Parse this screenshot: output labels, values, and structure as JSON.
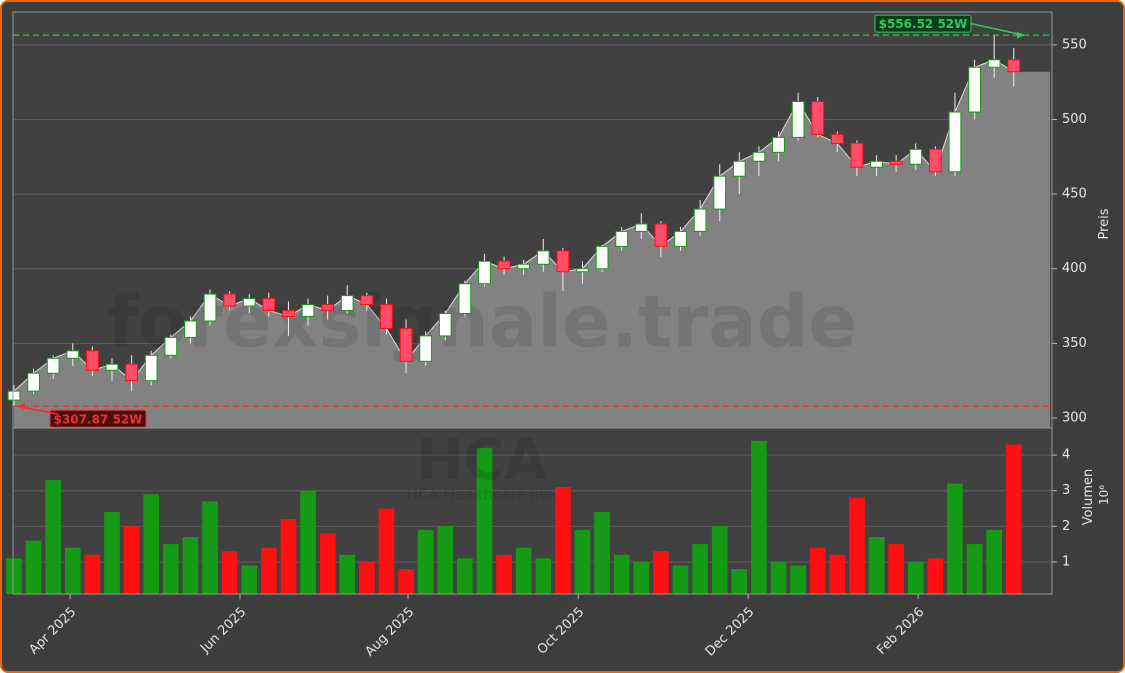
{
  "chart_data": {
    "type": "candlestick",
    "watermark": "forexsignale.trade",
    "ticker": "HCA",
    "company": "HCA Healthcare Inc.",
    "categories": [
      null,
      null,
      null,
      null,
      null,
      null,
      null,
      null,
      null,
      null,
      null,
      null,
      null,
      null,
      null,
      null,
      null,
      null,
      null,
      null,
      null,
      null,
      null,
      null,
      null,
      null,
      null,
      null,
      null,
      null,
      null,
      null,
      null,
      null,
      null,
      null,
      null,
      null,
      null,
      null,
      null,
      null,
      null,
      null,
      null,
      null,
      null,
      null,
      null,
      null,
      null,
      null
    ],
    "open": [
      312,
      318,
      330,
      340,
      345,
      332,
      336,
      325,
      342,
      354,
      365,
      383,
      375,
      380,
      372,
      368,
      376,
      372,
      382,
      376,
      360,
      338,
      355,
      370,
      390,
      405,
      400,
      403,
      412,
      398,
      400,
      415,
      425,
      430,
      415,
      425,
      440,
      462,
      472,
      478,
      488,
      512,
      490,
      484,
      468,
      472,
      470,
      480,
      465,
      505,
      535,
      540
    ],
    "high": [
      322,
      333,
      342,
      350,
      348,
      340,
      342,
      345,
      356,
      368,
      386,
      385,
      383,
      384,
      378,
      380,
      382,
      389,
      384,
      380,
      366,
      358,
      372,
      392,
      410,
      408,
      406,
      420,
      414,
      405,
      416,
      428,
      437,
      432,
      428,
      446,
      470,
      478,
      482,
      492,
      518,
      515,
      492,
      486,
      476,
      476,
      484,
      482,
      518,
      540,
      556.52,
      548
    ],
    "low": [
      307.87,
      316,
      326,
      335,
      328,
      325,
      318,
      322,
      340,
      350,
      362,
      372,
      370,
      368,
      355,
      362,
      366,
      370,
      372,
      356,
      330,
      335,
      352,
      368,
      388,
      396,
      396,
      398,
      385,
      390,
      398,
      412,
      420,
      408,
      412,
      422,
      432,
      450,
      462,
      472,
      486,
      488,
      478,
      462,
      462,
      465,
      466,
      462,
      462,
      500,
      528,
      522
    ],
    "close": [
      318,
      330,
      340,
      345,
      332,
      336,
      325,
      342,
      354,
      365,
      383,
      375,
      380,
      372,
      368,
      376,
      372,
      382,
      376,
      360,
      338,
      355,
      370,
      390,
      405,
      400,
      403,
      412,
      398,
      400,
      415,
      425,
      430,
      415,
      425,
      440,
      462,
      472,
      478,
      488,
      512,
      490,
      484,
      468,
      472,
      470,
      480,
      465,
      505,
      535,
      540,
      532
    ],
    "volume": [
      1.1,
      1.6,
      3.3,
      1.4,
      1.2,
      2.4,
      2.0,
      2.9,
      1.5,
      1.7,
      2.7,
      1.3,
      0.9,
      1.4,
      2.2,
      3.0,
      1.8,
      1.2,
      1.0,
      2.5,
      0.8,
      1.9,
      2.0,
      1.1,
      4.2,
      1.2,
      1.4,
      1.1,
      3.1,
      1.9,
      2.4,
      1.2,
      1.0,
      1.3,
      0.9,
      1.5,
      2.0,
      0.8,
      4.4,
      1.0,
      0.9,
      1.4,
      1.2,
      2.8,
      1.7,
      1.5,
      1.0,
      1.1,
      3.2,
      1.5,
      1.9,
      4.3
    ],
    "color_up": "#159a15",
    "color_down": "#ff1010",
    "area_color": "#828282",
    "grid": true,
    "xlim": [
      -0.05,
      52.95
    ],
    "xticks": [
      {
        "value": 2.86,
        "label": "Apr 2025"
      },
      {
        "value": 11.53,
        "label": "Jun 2025"
      },
      {
        "value": 20.1,
        "label": "Aug 2025"
      },
      {
        "value": 28.78,
        "label": "Oct 2025"
      },
      {
        "value": 37.45,
        "label": "Dec 2025"
      },
      {
        "value": 46.12,
        "label": "Feb 2026"
      }
    ],
    "ylim": [
      293.3,
      572
    ],
    "yticks": [
      300,
      350,
      400,
      450,
      500,
      550
    ],
    "ylabel": "Preis",
    "y2lim": [
      0.1,
      4.76
    ],
    "y2ticks": [
      1,
      2,
      3,
      4
    ],
    "y2label": "Volumen",
    "y2_scale": "10⁶",
    "annotations": [
      {
        "value": 556.52,
        "label": "$556.52 52W",
        "color": "#2ecc55"
      },
      {
        "value": 307.87,
        "label": "$307.87 52W",
        "color": "#ee3030"
      }
    ]
  }
}
